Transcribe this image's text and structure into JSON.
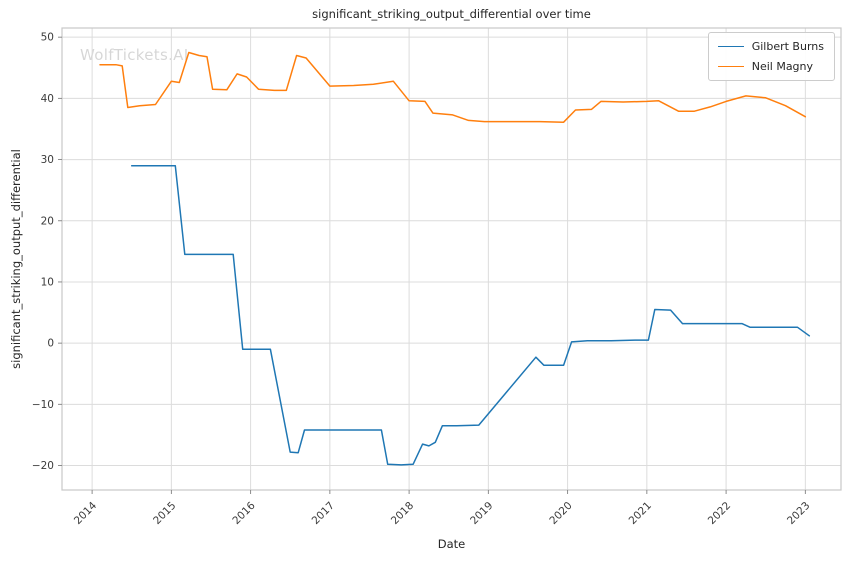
{
  "watermark": {
    "text": "WolfTickets.AI"
  },
  "chart_data": {
    "type": "line",
    "title": "significant_striking_output_differential over time",
    "xlabel": "Date",
    "ylabel": "significant_striking_output_differential",
    "xlim": [
      2013.62,
      2023.45
    ],
    "ylim": [
      -24,
      51.5
    ],
    "xticks": [
      2014,
      2015,
      2016,
      2017,
      2018,
      2019,
      2020,
      2021,
      2022,
      2023
    ],
    "yticks": [
      -20,
      -10,
      0,
      10,
      20,
      30,
      40,
      50
    ],
    "grid": true,
    "legend_position": "upper right",
    "colors": {
      "grid": "#dcdcdc",
      "frame": "#c8c8c8",
      "tick": "#3b3b3b"
    },
    "series": [
      {
        "name": "Gilbert Burns",
        "color": "#1f77b4",
        "points": [
          [
            2014.5,
            29
          ],
          [
            2014.8,
            29
          ],
          [
            2015.05,
            29
          ],
          [
            2015.17,
            14.5
          ],
          [
            2015.5,
            14.5
          ],
          [
            2015.78,
            14.5
          ],
          [
            2015.9,
            -1
          ],
          [
            2016.05,
            -1
          ],
          [
            2016.25,
            -1
          ],
          [
            2016.5,
            -17.8
          ],
          [
            2016.6,
            -17.9
          ],
          [
            2016.68,
            -14.2
          ],
          [
            2016.95,
            -14.2
          ],
          [
            2017.3,
            -14.2
          ],
          [
            2017.65,
            -14.2
          ],
          [
            2017.73,
            -19.8
          ],
          [
            2017.9,
            -19.9
          ],
          [
            2018.05,
            -19.8
          ],
          [
            2018.17,
            -16.5
          ],
          [
            2018.25,
            -16.8
          ],
          [
            2018.33,
            -16.2
          ],
          [
            2018.42,
            -13.5
          ],
          [
            2018.6,
            -13.5
          ],
          [
            2018.88,
            -13.4
          ],
          [
            2019.6,
            -2.3
          ],
          [
            2019.7,
            -3.6
          ],
          [
            2019.95,
            -3.6
          ],
          [
            2020.05,
            0.2
          ],
          [
            2020.25,
            0.4
          ],
          [
            2020.55,
            0.4
          ],
          [
            2020.85,
            0.5
          ],
          [
            2021.02,
            0.5
          ],
          [
            2021.1,
            5.5
          ],
          [
            2021.3,
            5.4
          ],
          [
            2021.45,
            3.2
          ],
          [
            2021.7,
            3.2
          ],
          [
            2022.0,
            3.2
          ],
          [
            2022.2,
            3.2
          ],
          [
            2022.3,
            2.6
          ],
          [
            2022.6,
            2.6
          ],
          [
            2022.9,
            2.6
          ],
          [
            2023.05,
            1.2
          ]
        ]
      },
      {
        "name": "Neil Magny",
        "color": "#ff7f0e",
        "points": [
          [
            2014.1,
            45.5
          ],
          [
            2014.3,
            45.5
          ],
          [
            2014.38,
            45.3
          ],
          [
            2014.45,
            38.5
          ],
          [
            2014.6,
            38.8
          ],
          [
            2014.8,
            39
          ],
          [
            2015.0,
            42.8
          ],
          [
            2015.1,
            42.6
          ],
          [
            2015.22,
            47.5
          ],
          [
            2015.35,
            47
          ],
          [
            2015.45,
            46.8
          ],
          [
            2015.52,
            41.5
          ],
          [
            2015.7,
            41.4
          ],
          [
            2015.83,
            44
          ],
          [
            2015.95,
            43.5
          ],
          [
            2016.1,
            41.5
          ],
          [
            2016.3,
            41.3
          ],
          [
            2016.45,
            41.3
          ],
          [
            2016.58,
            47
          ],
          [
            2016.7,
            46.6
          ],
          [
            2017.0,
            42
          ],
          [
            2017.3,
            42.1
          ],
          [
            2017.55,
            42.3
          ],
          [
            2017.8,
            42.8
          ],
          [
            2018.0,
            39.6
          ],
          [
            2018.2,
            39.5
          ],
          [
            2018.3,
            37.6
          ],
          [
            2018.55,
            37.3
          ],
          [
            2018.75,
            36.4
          ],
          [
            2018.95,
            36.2
          ],
          [
            2019.3,
            36.2
          ],
          [
            2019.65,
            36.2
          ],
          [
            2019.95,
            36.1
          ],
          [
            2020.1,
            38.1
          ],
          [
            2020.3,
            38.2
          ],
          [
            2020.42,
            39.5
          ],
          [
            2020.7,
            39.4
          ],
          [
            2021.0,
            39.5
          ],
          [
            2021.15,
            39.6
          ],
          [
            2021.4,
            37.9
          ],
          [
            2021.6,
            37.9
          ],
          [
            2021.8,
            38.6
          ],
          [
            2022.0,
            39.5
          ],
          [
            2022.25,
            40.4
          ],
          [
            2022.5,
            40.1
          ],
          [
            2022.75,
            38.8
          ],
          [
            2023.0,
            37
          ]
        ]
      }
    ]
  }
}
